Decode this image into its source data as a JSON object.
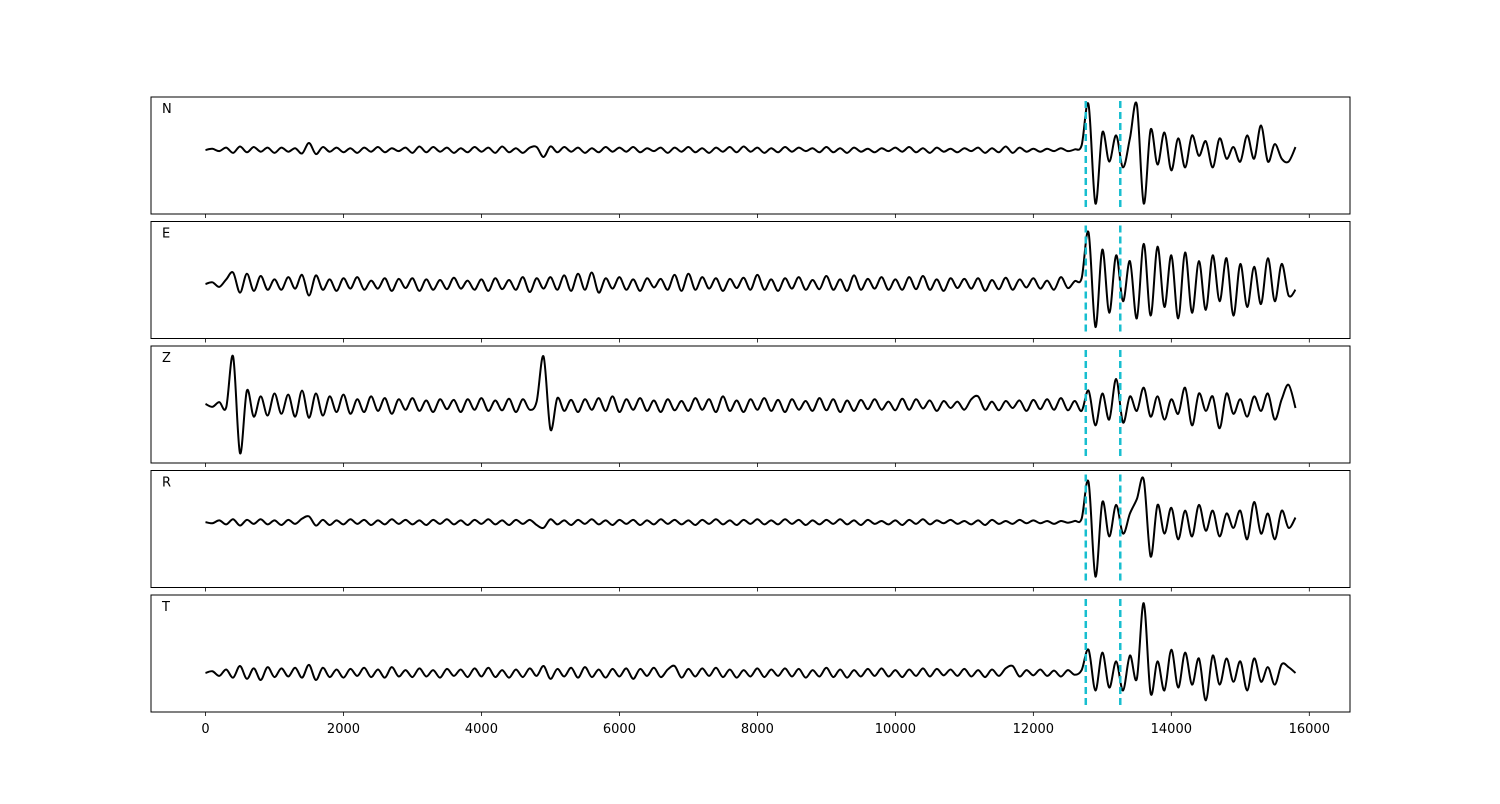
{
  "chart_data": {
    "type": "line",
    "layout": "stacked",
    "x": [
      0,
      100,
      200,
      300,
      400,
      500,
      600,
      700,
      800,
      900,
      1000,
      1100,
      1200,
      1300,
      1400,
      1500,
      1600,
      1700,
      1800,
      1900,
      2000,
      2100,
      2200,
      2300,
      2400,
      2500,
      2600,
      2700,
      2800,
      2900,
      3000,
      3100,
      3200,
      3300,
      3400,
      3500,
      3600,
      3700,
      3800,
      3900,
      4000,
      4100,
      4200,
      4300,
      4400,
      4500,
      4600,
      4700,
      4800,
      4900,
      5000,
      5100,
      5200,
      5300,
      5400,
      5500,
      5600,
      5700,
      5800,
      5900,
      6000,
      6100,
      6200,
      6300,
      6400,
      6500,
      6600,
      6700,
      6800,
      6900,
      7000,
      7100,
      7200,
      7300,
      7400,
      7500,
      7600,
      7700,
      7800,
      7900,
      8000,
      8100,
      8200,
      8300,
      8400,
      8500,
      8600,
      8700,
      8800,
      8900,
      9000,
      9100,
      9200,
      9300,
      9400,
      9500,
      9600,
      9700,
      9800,
      9900,
      10000,
      10100,
      10200,
      10300,
      10400,
      10500,
      10600,
      10700,
      10800,
      10900,
      11000,
      11100,
      11200,
      11300,
      11400,
      11500,
      11600,
      11700,
      11800,
      11900,
      12000,
      12100,
      12200,
      12300,
      12400,
      12500,
      12600,
      12700,
      12800,
      12900,
      13000,
      13100,
      13200,
      13300,
      13400,
      13500,
      13600,
      13700,
      13800,
      13900,
      14000,
      14100,
      14200,
      14300,
      14400,
      14500,
      14600,
      14700,
      14800,
      14900,
      15000,
      15100,
      15200,
      15300,
      15400,
      15500,
      15600,
      15700,
      15800
    ],
    "xlim": [
      -790,
      16590
    ],
    "xticks": [
      0,
      2000,
      4000,
      6000,
      8000,
      10000,
      12000,
      14000,
      16000
    ],
    "vlines": [
      12760,
      13260
    ],
    "vline_color": "#17becf",
    "line_color": "#000000",
    "series": [
      {
        "name": "N",
        "ylim": [
          -1.1,
          0.91
        ],
        "values": [
          0.0,
          0.02,
          -0.02,
          0.04,
          -0.05,
          0.06,
          -0.04,
          0.05,
          -0.03,
          0.04,
          -0.05,
          0.04,
          -0.03,
          0.03,
          -0.06,
          0.12,
          -0.07,
          0.05,
          -0.03,
          0.04,
          -0.04,
          0.03,
          -0.05,
          0.04,
          -0.03,
          0.05,
          -0.04,
          0.03,
          -0.02,
          0.04,
          -0.05,
          0.06,
          -0.04,
          0.05,
          -0.03,
          0.04,
          -0.05,
          0.03,
          -0.04,
          0.05,
          -0.03,
          0.04,
          -0.05,
          0.06,
          -0.04,
          0.03,
          -0.05,
          0.04,
          0.05,
          -0.12,
          0.06,
          -0.04,
          0.05,
          -0.03,
          0.04,
          -0.05,
          0.03,
          -0.04,
          0.05,
          -0.03,
          0.04,
          -0.03,
          0.05,
          -0.04,
          0.03,
          -0.02,
          0.04,
          -0.05,
          0.04,
          -0.03,
          0.05,
          -0.04,
          0.03,
          -0.05,
          0.04,
          -0.03,
          0.05,
          -0.04,
          0.06,
          -0.03,
          0.04,
          -0.05,
          0.03,
          -0.04,
          0.05,
          -0.03,
          0.04,
          -0.02,
          0.03,
          -0.04,
          0.05,
          -0.04,
          0.03,
          -0.05,
          0.04,
          -0.03,
          0.02,
          -0.04,
          0.03,
          -0.02,
          0.04,
          -0.03,
          0.05,
          -0.04,
          0.03,
          -0.05,
          0.04,
          -0.03,
          0.02,
          -0.04,
          0.03,
          -0.02,
          0.04,
          -0.05,
          0.03,
          -0.04,
          0.06,
          -0.05,
          0.04,
          -0.03,
          0.02,
          -0.03,
          0.02,
          -0.02,
          0.03,
          -0.02,
          0.01,
          0.08,
          0.78,
          -0.92,
          0.3,
          -0.2,
          0.25,
          -0.3,
          0.2,
          0.78,
          -0.92,
          0.35,
          -0.25,
          0.3,
          -0.35,
          0.2,
          -0.3,
          0.25,
          -0.1,
          0.15,
          -0.3,
          0.2,
          -0.15,
          0.05,
          -0.2,
          0.25,
          -0.15,
          0.42,
          -0.2,
          0.1,
          -0.15,
          -0.2,
          0.05
        ]
      },
      {
        "name": "E",
        "ylim": [
          -0.95,
          1.09
        ],
        "values": [
          0.0,
          0.03,
          -0.05,
          0.08,
          0.2,
          -0.15,
          0.18,
          -0.12,
          0.14,
          -0.1,
          0.08,
          -0.1,
          0.12,
          -0.08,
          0.16,
          -0.2,
          0.15,
          -0.1,
          0.08,
          -0.12,
          0.1,
          -0.08,
          0.12,
          -0.1,
          0.06,
          -0.08,
          0.1,
          -0.12,
          0.09,
          -0.07,
          0.1,
          -0.12,
          0.08,
          -0.1,
          0.07,
          -0.09,
          0.11,
          -0.08,
          0.06,
          -0.1,
          0.08,
          -0.12,
          0.1,
          -0.09,
          0.07,
          -0.1,
          0.12,
          -0.14,
          0.1,
          -0.08,
          0.12,
          -0.1,
          0.15,
          -0.12,
          0.18,
          -0.1,
          0.2,
          -0.15,
          0.1,
          -0.08,
          0.12,
          -0.1,
          0.08,
          -0.12,
          0.1,
          -0.06,
          0.09,
          -0.1,
          0.16,
          -0.12,
          0.18,
          -0.1,
          0.12,
          -0.08,
          0.1,
          -0.12,
          0.09,
          -0.07,
          0.11,
          -0.1,
          0.16,
          -0.1,
          0.08,
          -0.12,
          0.1,
          -0.08,
          0.12,
          -0.1,
          0.07,
          -0.09,
          0.14,
          -0.1,
          0.08,
          -0.12,
          0.15,
          -0.1,
          0.09,
          -0.08,
          0.12,
          -0.1,
          0.08,
          -0.1,
          0.12,
          -0.09,
          0.14,
          -0.1,
          0.08,
          -0.12,
          0.1,
          -0.07,
          0.09,
          -0.08,
          0.1,
          -0.12,
          0.07,
          -0.09,
          0.11,
          -0.1,
          0.08,
          -0.06,
          0.1,
          -0.08,
          0.06,
          -0.1,
          0.12,
          -0.07,
          0.05,
          0.1,
          0.9,
          -0.75,
          0.6,
          -0.5,
          0.5,
          -0.3,
          0.4,
          -0.6,
          0.7,
          -0.55,
          0.65,
          -0.4,
          0.5,
          -0.6,
          0.55,
          -0.5,
          0.4,
          -0.45,
          0.5,
          -0.3,
          0.45,
          -0.55,
          0.35,
          -0.4,
          0.3,
          -0.35,
          0.45,
          -0.3,
          0.35,
          -0.2,
          -0.1
        ]
      },
      {
        "name": "Z",
        "ylim": [
          -1.0,
          1.02
        ],
        "values": [
          0.02,
          -0.03,
          0.05,
          -0.04,
          0.84,
          -0.83,
          0.25,
          -0.2,
          0.15,
          -0.18,
          0.2,
          -0.15,
          0.18,
          -0.2,
          0.25,
          -0.22,
          0.2,
          -0.18,
          0.15,
          -0.12,
          0.18,
          -0.15,
          0.1,
          -0.12,
          0.15,
          -0.1,
          0.12,
          -0.15,
          0.1,
          -0.08,
          0.12,
          -0.1,
          0.08,
          -0.12,
          0.1,
          -0.07,
          0.09,
          -0.12,
          0.1,
          -0.08,
          0.12,
          -0.1,
          0.08,
          -0.09,
          0.11,
          -0.12,
          0.1,
          -0.08,
          0.06,
          0.84,
          -0.42,
          0.12,
          -0.1,
          0.09,
          -0.12,
          0.1,
          -0.08,
          0.12,
          -0.1,
          0.15,
          -0.12,
          0.1,
          -0.08,
          0.12,
          -0.1,
          0.08,
          -0.12,
          0.1,
          -0.09,
          0.07,
          -0.1,
          0.12,
          -0.08,
          0.1,
          -0.12,
          0.15,
          -0.1,
          0.08,
          -0.12,
          0.1,
          -0.08,
          0.12,
          -0.1,
          0.09,
          -0.12,
          0.1,
          -0.08,
          0.07,
          -0.1,
          0.12,
          -0.09,
          0.1,
          -0.12,
          0.08,
          -0.1,
          0.09,
          -0.07,
          0.1,
          -0.08,
          0.06,
          -0.09,
          0.11,
          -0.08,
          0.1,
          -0.06,
          0.08,
          -0.1,
          0.07,
          -0.05,
          0.06,
          -0.08,
          0.1,
          0.15,
          -0.08,
          0.06,
          -0.09,
          0.07,
          -0.05,
          0.08,
          -0.1,
          0.09,
          -0.07,
          0.1,
          -0.08,
          0.12,
          -0.09,
          0.07,
          -0.1,
          0.25,
          -0.35,
          0.2,
          -0.25,
          0.45,
          -0.3,
          0.15,
          -0.1,
          0.3,
          -0.2,
          0.15,
          -0.25,
          0.1,
          -0.15,
          0.3,
          -0.35,
          0.2,
          -0.1,
          0.15,
          -0.4,
          0.2,
          -0.15,
          0.1,
          -0.2,
          0.15,
          -0.1,
          0.2,
          -0.25,
          0.1,
          0.35,
          -0.05
        ]
      },
      {
        "name": "R",
        "ylim": [
          -1.14,
          0.9
        ],
        "values": [
          0.0,
          -0.02,
          0.03,
          -0.04,
          0.05,
          -0.06,
          0.04,
          -0.03,
          0.05,
          -0.04,
          0.03,
          -0.05,
          0.04,
          -0.03,
          0.06,
          0.1,
          -0.06,
          0.04,
          -0.05,
          0.03,
          -0.04,
          0.05,
          -0.03,
          0.04,
          -0.05,
          0.03,
          -0.04,
          0.05,
          -0.03,
          0.04,
          -0.04,
          0.03,
          -0.05,
          0.04,
          -0.03,
          0.05,
          -0.04,
          0.03,
          -0.05,
          0.04,
          -0.03,
          0.05,
          -0.04,
          0.03,
          -0.05,
          0.04,
          -0.03,
          0.04,
          -0.05,
          -0.1,
          0.05,
          -0.04,
          0.03,
          -0.05,
          0.04,
          -0.03,
          0.05,
          -0.04,
          0.03,
          -0.05,
          0.04,
          -0.03,
          0.04,
          -0.05,
          0.03,
          -0.04,
          0.05,
          -0.03,
          0.04,
          -0.04,
          0.03,
          -0.05,
          0.04,
          -0.03,
          0.05,
          -0.04,
          0.03,
          -0.05,
          0.04,
          -0.03,
          0.05,
          -0.04,
          0.03,
          -0.04,
          0.05,
          -0.03,
          0.04,
          -0.05,
          0.03,
          -0.04,
          0.04,
          -0.03,
          0.05,
          -0.04,
          0.03,
          -0.05,
          0.04,
          -0.03,
          0.02,
          -0.04,
          0.03,
          -0.05,
          0.04,
          -0.03,
          0.05,
          -0.04,
          0.03,
          -0.02,
          0.04,
          -0.03,
          0.02,
          -0.04,
          0.03,
          -0.05,
          0.04,
          -0.03,
          0.02,
          -0.03,
          0.04,
          -0.02,
          0.03,
          -0.02,
          0.02,
          -0.03,
          0.02,
          -0.01,
          0.02,
          0.06,
          0.7,
          -0.95,
          0.35,
          -0.25,
          0.3,
          -0.2,
          0.15,
          0.4,
          0.74,
          -0.6,
          0.3,
          -0.2,
          0.25,
          -0.3,
          0.2,
          -0.25,
          0.3,
          -0.15,
          0.2,
          -0.25,
          0.15,
          -0.1,
          0.2,
          -0.3,
          0.35,
          -0.2,
          0.15,
          -0.3,
          0.2,
          -0.1,
          0.08
        ]
      },
      {
        "name": "T",
        "ylim": [
          -0.67,
          1.34
        ],
        "values": [
          0.0,
          0.03,
          -0.05,
          0.06,
          -0.08,
          0.12,
          -0.1,
          0.08,
          -0.12,
          0.1,
          -0.07,
          0.08,
          -0.06,
          0.09,
          -0.08,
          0.14,
          -0.12,
          0.09,
          -0.07,
          0.06,
          -0.08,
          0.07,
          -0.05,
          0.09,
          -0.07,
          0.06,
          -0.08,
          0.1,
          -0.06,
          0.05,
          -0.07,
          0.08,
          -0.06,
          0.05,
          -0.08,
          0.07,
          -0.05,
          0.06,
          -0.07,
          0.08,
          -0.06,
          0.09,
          -0.07,
          0.05,
          -0.08,
          0.06,
          -0.07,
          0.08,
          -0.05,
          0.12,
          -0.1,
          0.07,
          -0.06,
          0.09,
          -0.08,
          0.1,
          -0.07,
          0.06,
          -0.08,
          0.07,
          -0.06,
          0.08,
          -0.1,
          0.07,
          -0.05,
          0.09,
          -0.07,
          0.06,
          0.12,
          -0.08,
          0.07,
          -0.06,
          0.08,
          -0.05,
          0.09,
          -0.07,
          0.06,
          -0.08,
          0.05,
          -0.06,
          0.08,
          -0.07,
          0.06,
          -0.05,
          0.08,
          -0.06,
          0.07,
          -0.08,
          0.05,
          -0.06,
          0.09,
          -0.07,
          0.06,
          -0.08,
          0.05,
          -0.06,
          0.07,
          -0.05,
          0.08,
          -0.06,
          0.05,
          -0.07,
          0.06,
          -0.05,
          0.08,
          -0.06,
          0.07,
          -0.04,
          0.06,
          -0.05,
          0.07,
          -0.06,
          0.05,
          -0.07,
          0.06,
          -0.05,
          0.08,
          0.12,
          -0.06,
          0.05,
          -0.04,
          0.06,
          -0.05,
          0.04,
          -0.06,
          0.05,
          -0.03,
          0.05,
          0.4,
          -0.3,
          0.35,
          -0.25,
          0.2,
          -0.3,
          0.3,
          -0.1,
          1.2,
          -0.35,
          0.2,
          -0.3,
          0.4,
          -0.25,
          0.35,
          -0.2,
          0.25,
          -0.47,
          0.3,
          -0.2,
          0.25,
          -0.15,
          0.2,
          -0.3,
          0.25,
          -0.15,
          0.1,
          -0.2,
          0.15,
          0.1,
          0.0
        ]
      }
    ]
  }
}
